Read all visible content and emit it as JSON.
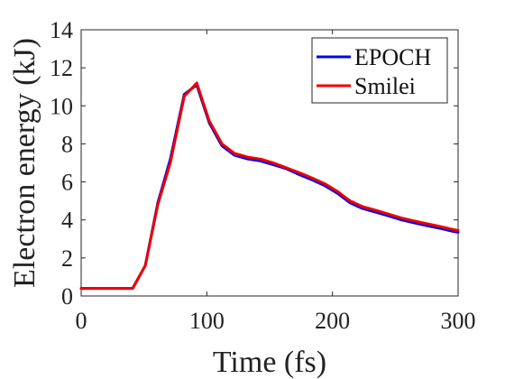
{
  "chart_data": {
    "type": "line",
    "title": "",
    "xlabel": "Time (fs)",
    "ylabel": "Electron energy (kJ)",
    "xlim": [
      0,
      300
    ],
    "ylim": [
      0,
      14
    ],
    "xticks": [
      0,
      100,
      200,
      300
    ],
    "yticks": [
      0,
      2,
      4,
      6,
      8,
      10,
      12,
      14
    ],
    "grid": false,
    "legend_position": "top-right",
    "series": [
      {
        "name": "EPOCH",
        "color": "#0000ee",
        "x": [
          0,
          10,
          20,
          30,
          41,
          51,
          61,
          71,
          82,
          92,
          102,
          112,
          122,
          133,
          143,
          153,
          163,
          173,
          184,
          194,
          204,
          214,
          224,
          235,
          245,
          255,
          265,
          275,
          286,
          296,
          300
        ],
        "y": [
          0.4,
          0.4,
          0.4,
          0.4,
          0.4,
          1.6,
          4.9,
          7.2,
          10.6,
          11.1,
          9.1,
          7.9,
          7.4,
          7.2,
          7.1,
          6.9,
          6.7,
          6.4,
          6.1,
          5.8,
          5.4,
          4.9,
          4.6,
          4.4,
          4.2,
          4.0,
          3.85,
          3.7,
          3.55,
          3.4,
          3.35
        ]
      },
      {
        "name": "Smilei",
        "color": "#ee0000",
        "x": [
          0,
          10,
          20,
          30,
          41,
          51,
          61,
          71,
          82,
          92,
          102,
          112,
          122,
          133,
          143,
          153,
          163,
          173,
          184,
          194,
          204,
          214,
          224,
          235,
          245,
          255,
          265,
          275,
          286,
          296,
          300
        ],
        "y": [
          0.4,
          0.4,
          0.4,
          0.4,
          0.4,
          1.6,
          4.8,
          7.0,
          10.5,
          11.2,
          9.2,
          8.0,
          7.5,
          7.3,
          7.2,
          7.0,
          6.75,
          6.5,
          6.2,
          5.9,
          5.5,
          5.0,
          4.7,
          4.5,
          4.3,
          4.1,
          3.95,
          3.8,
          3.65,
          3.5,
          3.45
        ]
      }
    ]
  }
}
